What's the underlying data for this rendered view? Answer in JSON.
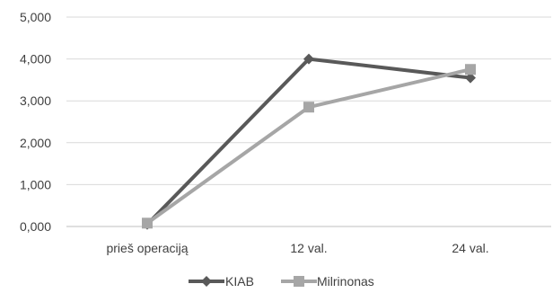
{
  "chart_data": {
    "type": "line",
    "categories": [
      "prieš operaciją",
      "12 val.",
      "24 val."
    ],
    "series": [
      {
        "name": "KIAB",
        "values": [
          0.05,
          4.0,
          3.55
        ],
        "color": "#595959",
        "marker": "diamond"
      },
      {
        "name": "Milrinonas",
        "values": [
          0.08,
          2.85,
          3.75
        ],
        "color": "#a6a6a6",
        "marker": "square"
      }
    ],
    "ylim": [
      0,
      5
    ],
    "yticks": [
      "0,000",
      "1,000",
      "2,000",
      "3,000",
      "4,000",
      "5,000"
    ],
    "ytick_values": [
      0,
      1,
      2,
      3,
      4,
      5
    ],
    "grid": true,
    "legend_position": "bottom",
    "title": "",
    "xlabel": "",
    "ylabel": ""
  }
}
